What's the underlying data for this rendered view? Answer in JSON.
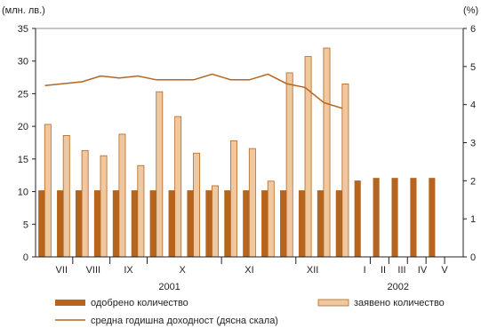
{
  "chart_data": {
    "type": "bar",
    "left_axis_unit": "(млн. лв.)",
    "right_axis_unit": "(%)",
    "left_ylim": [
      0,
      35
    ],
    "left_ticks": [
      "0",
      "5",
      "10",
      "15",
      "20",
      "25",
      "30",
      "35"
    ],
    "right_ylim": [
      0,
      6
    ],
    "right_ticks": [
      "0",
      "1",
      "2",
      "3",
      "4",
      "5",
      "6"
    ],
    "months": [
      "VII",
      "VIII",
      "IX",
      "X",
      "XI",
      "XII",
      "I",
      "II",
      "III",
      "IV",
      "V"
    ],
    "years": [
      "2001",
      "2002"
    ],
    "series": [
      {
        "name": "одобрено количество",
        "color": "#b5651d",
        "values": [
          10.2,
          10.2,
          10.2,
          10.2,
          10.2,
          10.2,
          10.2,
          10.2,
          10.2,
          10.2,
          10.2,
          10.2,
          10.2,
          10.2,
          10.2,
          10.2,
          10.2,
          11.7,
          12.1,
          12.1,
          12.1,
          12.1,
          null
        ]
      },
      {
        "name": "заявено количество",
        "color": "#f0c8a0",
        "values": [
          20.3,
          18.6,
          16.3,
          15.5,
          18.8,
          14.0,
          25.3,
          21.5,
          15.9,
          10.9,
          17.8,
          16.6,
          11.6,
          28.2,
          30.7,
          32.0,
          26.5,
          null,
          null,
          null,
          null,
          null,
          null
        ]
      }
    ],
    "line_series": {
      "name": "средна годишна доходност (дясна скала)",
      "color": "#b5651d",
      "values": [
        4.5,
        4.55,
        4.6,
        4.75,
        4.7,
        4.75,
        4.65,
        4.65,
        4.65,
        4.8,
        4.65,
        4.65,
        4.8,
        4.55,
        4.45,
        4.05,
        3.9
      ]
    }
  },
  "legend": {
    "approved": "одобрено количество",
    "requested": "заявено количество",
    "yield": "средна годишна доходност (дясна скала)"
  }
}
